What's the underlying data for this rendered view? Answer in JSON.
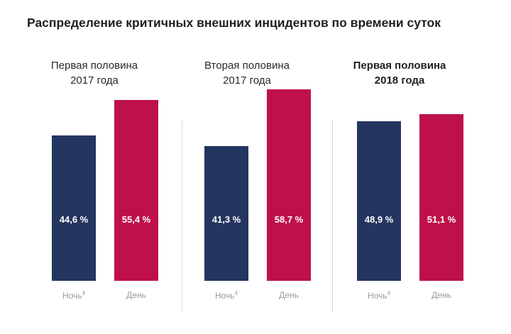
{
  "chart_data": {
    "type": "bar",
    "title": "Распределение критичных внешних инцидентов по времени суток",
    "colors": {
      "night": "#243560",
      "day": "#bf1149"
    },
    "ylim": [
      0,
      100
    ],
    "groups": [
      {
        "title_lines": [
          "Первая половина",
          "2017 года"
        ],
        "bold": false,
        "bars": [
          {
            "category": "Ночь",
            "footnote": "4",
            "value": 44.6,
            "label": "44,6 %",
            "color_key": "night"
          },
          {
            "category": "День",
            "footnote": "",
            "value": 55.4,
            "label": "55,4 %",
            "color_key": "day"
          }
        ]
      },
      {
        "title_lines": [
          "Вторая половина",
          "2017 года"
        ],
        "bold": false,
        "bars": [
          {
            "category": "Ночь",
            "footnote": "4",
            "value": 41.3,
            "label": "41,3 %",
            "color_key": "night"
          },
          {
            "category": "День",
            "footnote": "",
            "value": 58.7,
            "label": "58,7 %",
            "color_key": "day"
          }
        ]
      },
      {
        "title_lines": [
          "Первая половина",
          "2018 года"
        ],
        "bold": true,
        "bars": [
          {
            "category": "Ночь",
            "footnote": "4",
            "value": 48.9,
            "label": "48,9 %",
            "color_key": "night"
          },
          {
            "category": "День",
            "footnote": "",
            "value": 51.1,
            "label": "51,1 %",
            "color_key": "day"
          }
        ]
      }
    ]
  }
}
